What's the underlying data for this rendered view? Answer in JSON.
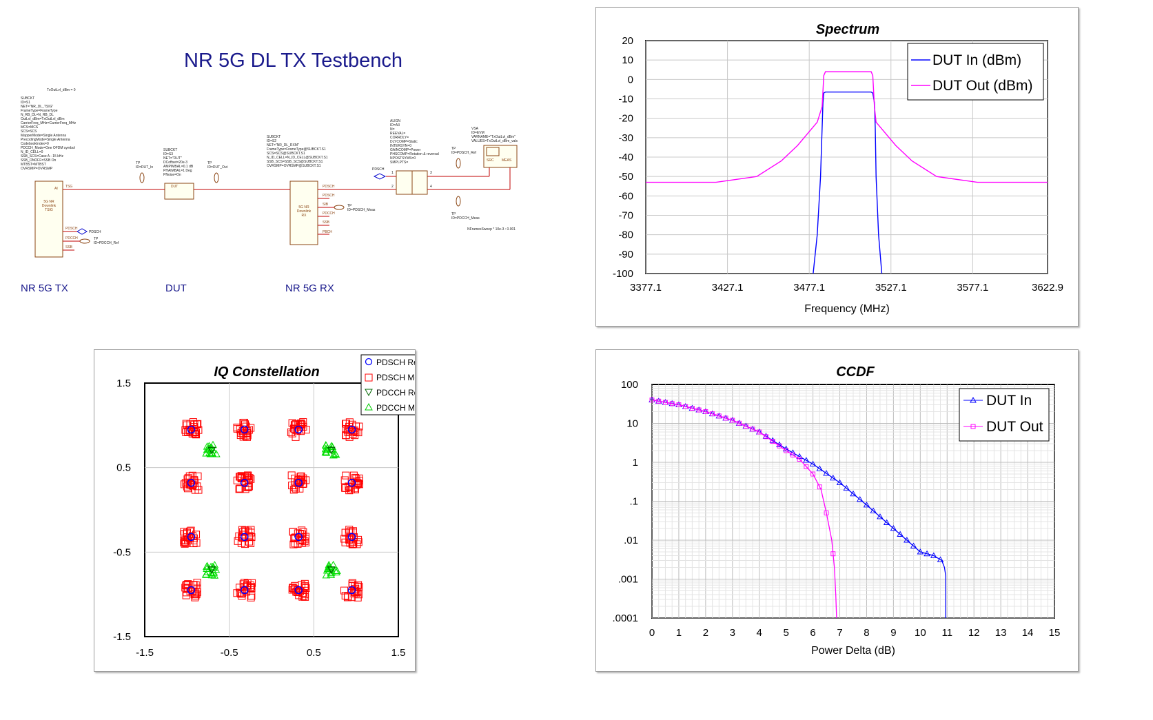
{
  "schematic": {
    "title": "NR 5G DL TX Testbench",
    "block_labels": [
      "NR 5G TX",
      "DUT",
      "NR 5G RX"
    ],
    "top_note": "TxOutLvl_dBm = 0",
    "tx_params": "SUBCKT\nID=S1\nNET=\"NR_DL_TSIG\"\nFrameType=FrameType\nN_RB_DL=N_RB_DL\nOutLvl_dBm=TxOutLvl_dBm\nCarrierFreq_MHz=CarrierFreq_MHz\nMCS=MCS\nSCS=SCS\nMapperMode=Single Antenna\nPrecodingMode=Single Antenna\nCodebookIndex=0\nPDCCH_Mode=One OFDM symbol\nN_ID_CELL=0\nSSB_SCS=Case A - 15 kHz\nSSB_ONOFF=SSB On\nMTBST=MTBST\nOVRSMP=OVRSMP",
    "dut_params": "SUBCKT\nID=S3\nNET=\"DUT\"\nDCoffset=20e-3\nAMPIMBAL=0.1 dB\nPHAIMBAL=1 Deg\nPNoise=On",
    "rx_params": "SUBCKT\nID=S2\nNET=\"NR_DL_RXM\"\nFrameType=FrameType@SUBCKT.S1\nSCS=SCS@SUBCKT.S1\nN_ID_CELL=N_ID_CELL@SUBCKT.S1\nSSB_SCS=SSB_SCS@SUBCKT.S1\nOVRSMP=OVRSMP@SUBCKT.S1",
    "align_params": "ALIGN\nID=A3\nN=\nREEVAL=\nCORRDLY=\nDLYCOMP=Static\nINTERSYN=0\nGAINCOMP=Power\nPHSCOMP=Rotation & reversal\nNPOSTSYMS=0\nSMPLPTS=",
    "vsa_params": "VSA\nID=EVM\nVARNAME=\"TxOutLvl_dBm\"\nVALUES=TxOutLvl_dBm_vals",
    "tp_dut_in": "TP\nID=DUT_In",
    "tp_dut_out": "TP\nID=DUT_Out",
    "tp_pdsch_ref": "TP\nID=PDSCH_Ref",
    "tp_pdsch_meas": "TP\nID=PDSCH_Meas",
    "tp_pdcch_meas": "TP\nID=PDCCH_Meas",
    "tp_pdcch_ref": "TP\nID=PDCCH_Ref",
    "nframes_note": "NFramesSweep * 10e-3 : 0.001",
    "port_pdsch": "PDSCH",
    "port_pdsch2": "PDSCH",
    "tx_block_text": "5G NR\nDownlink\nTSIG",
    "rx_block_text": "5G NR\nDownlink\nRX",
    "dut_block_text": "DUT",
    "pin_tsg": "TSG",
    "pin_ai": "AI",
    "pin_pdsch": "PDSCH",
    "pin_pdcch": "PDCCH",
    "pin_ssb": "SSB",
    "rx_pins": [
      "PDSCH",
      "PDSCH",
      "SIB",
      "PDCCH",
      "SSB",
      "PBCH"
    ],
    "vsa_labels": [
      "SRC",
      "MEAS"
    ],
    "align_pin_labels": [
      "1",
      "2",
      "3",
      "4"
    ]
  },
  "panels": {
    "spectrum": {
      "title": "Spectrum",
      "xlabel": "Frequency (MHz)",
      "x_ticks": [
        "3377.1",
        "3427.1",
        "3477.1",
        "3527.1",
        "3577.1",
        "3622.9"
      ],
      "y_ticks": [
        "20",
        "10",
        "0",
        "-10",
        "-20",
        "-30",
        "-40",
        "-50",
        "-60",
        "-70",
        "-80",
        "-90",
        "-100"
      ],
      "legend": [
        "DUT In (dBm)",
        "DUT Out (dBm)"
      ]
    },
    "iq": {
      "title": "IQ Constellation",
      "x_ticks": [
        "-1.5",
        "-0.5",
        "0.5",
        "1.5"
      ],
      "y_ticks": [
        "1.5",
        "0.5",
        "-0.5",
        "-1.5"
      ],
      "legend": [
        "PDSCH Reference",
        "PDSCH Measured",
        "PDCCH Reference",
        "PDCCH Measured"
      ]
    },
    "ccdf": {
      "title": "CCDF",
      "xlabel": "Power Delta (dB)",
      "x_ticks": [
        "0",
        "1",
        "2",
        "3",
        "4",
        "5",
        "6",
        "7",
        "8",
        "9",
        "10",
        "11",
        "12",
        "13",
        "14",
        "15"
      ],
      "y_ticks": [
        "100",
        "10",
        "1",
        ".1",
        ".01",
        ".001",
        ".0001"
      ],
      "legend": [
        "DUT In",
        "DUT Out"
      ]
    }
  },
  "chart_data": [
    {
      "type": "line",
      "title": "Spectrum",
      "xlabel": "Frequency (MHz)",
      "ylabel": "",
      "xlim": [
        3377.1,
        3622.9
      ],
      "ylim": [
        -100,
        20
      ],
      "grid": true,
      "legend_position": "top-right",
      "colors": {
        "DUT In (dBm)": "#0000ff",
        "DUT Out (dBm)": "#ff00ff"
      },
      "series": [
        {
          "name": "DUT In (dBm)",
          "x": [
            3479.5,
            3482,
            3484,
            3485,
            3485.5,
            3486,
            3487,
            3500,
            3515,
            3516,
            3517,
            3517.5,
            3518,
            3519.5,
            3521.5
          ],
          "y": [
            -100,
            -80,
            -50,
            -25,
            -12,
            -7,
            -6.5,
            -6.5,
            -6.5,
            -7,
            -12,
            -25,
            -50,
            -80,
            -100
          ]
        },
        {
          "name": "DUT Out (dBm)",
          "x": [
            3377.1,
            3420,
            3445,
            3460,
            3470,
            3478,
            3482,
            3485,
            3486,
            3487,
            3500,
            3515,
            3516,
            3517,
            3518,
            3522,
            3530,
            3540,
            3555,
            3580,
            3622.9
          ],
          "y": [
            -53,
            -53,
            -50,
            -42,
            -34,
            -26,
            -22,
            -14,
            2,
            4,
            4,
            4,
            2,
            -14,
            -22,
            -26,
            -34,
            -42,
            -50,
            -53,
            -53
          ]
        }
      ]
    },
    {
      "type": "scatter",
      "title": "IQ Constellation",
      "xlim": [
        -1.5,
        1.5
      ],
      "ylim": [
        -1.5,
        1.5
      ],
      "grid": true,
      "legend_position": "top-right",
      "colors": {
        "PDSCH Reference": "#0000ff",
        "PDSCH Measured": "#ff0000",
        "PDCCH Reference": "#006600",
        "PDCCH Measured": "#00dd00"
      },
      "series": [
        {
          "name": "PDSCH Reference",
          "points": [
            [
              -0.95,
              0.95
            ],
            [
              -0.32,
              0.95
            ],
            [
              0.32,
              0.95
            ],
            [
              0.95,
              0.95
            ],
            [
              -0.95,
              0.32
            ],
            [
              -0.32,
              0.32
            ],
            [
              0.32,
              0.32
            ],
            [
              0.95,
              0.32
            ],
            [
              -0.95,
              -0.32
            ],
            [
              -0.32,
              -0.32
            ],
            [
              0.32,
              -0.32
            ],
            [
              0.95,
              -0.32
            ],
            [
              -0.95,
              -0.95
            ],
            [
              -0.32,
              -0.95
            ],
            [
              0.32,
              -0.95
            ],
            [
              0.95,
              -0.95
            ]
          ]
        },
        {
          "name": "PDSCH Measured",
          "points": [
            [
              -0.95,
              0.95
            ],
            [
              -0.32,
              0.95
            ],
            [
              0.32,
              0.95
            ],
            [
              0.95,
              0.95
            ],
            [
              -0.95,
              0.32
            ],
            [
              -0.32,
              0.32
            ],
            [
              0.32,
              0.32
            ],
            [
              0.95,
              0.32
            ],
            [
              -0.95,
              -0.32
            ],
            [
              -0.32,
              -0.32
            ],
            [
              0.32,
              -0.32
            ],
            [
              0.95,
              -0.32
            ],
            [
              -0.95,
              -0.95
            ],
            [
              -0.32,
              -0.95
            ],
            [
              0.32,
              -0.95
            ],
            [
              0.95,
              -0.95
            ]
          ],
          "spread": 0.09
        },
        {
          "name": "PDCCH Reference",
          "points": [
            [
              -0.707,
              0.707
            ],
            [
              0.707,
              0.707
            ],
            [
              -0.707,
              -0.707
            ],
            [
              0.707,
              -0.707
            ]
          ]
        },
        {
          "name": "PDCCH Measured",
          "points": [
            [
              -0.707,
              0.707
            ],
            [
              0.707,
              0.707
            ],
            [
              -0.707,
              -0.707
            ],
            [
              0.707,
              -0.707
            ]
          ],
          "spread": 0.07
        }
      ]
    },
    {
      "type": "line",
      "title": "CCDF",
      "xlabel": "Power Delta (dB)",
      "xlim": [
        0,
        15
      ],
      "ylim": [
        0.0001,
        100
      ],
      "yscale": "log",
      "grid": true,
      "legend_position": "top-right",
      "colors": {
        "DUT In": "#0000ff",
        "DUT Out": "#ff00ff"
      },
      "series": [
        {
          "name": "DUT In",
          "x": [
            0,
            1,
            2,
            3,
            4,
            5,
            6,
            7,
            8,
            9,
            10,
            10.5,
            10.8,
            10.9,
            10.95,
            10.95
          ],
          "y": [
            40,
            30,
            20,
            12,
            6,
            2.2,
            0.9,
            0.3,
            0.08,
            0.02,
            0.005,
            0.004,
            0.003,
            0.002,
            0.0012,
            0.0001
          ]
        },
        {
          "name": "DUT Out",
          "x": [
            0,
            1,
            2,
            3,
            4,
            5,
            5.5,
            6,
            6.3,
            6.5,
            6.7,
            6.8,
            6.85,
            6.88
          ],
          "y": [
            40,
            30,
            20,
            12,
            6,
            2,
            1.2,
            0.5,
            0.2,
            0.05,
            0.01,
            0.002,
            0.0004,
            0.0001
          ]
        }
      ]
    }
  ]
}
